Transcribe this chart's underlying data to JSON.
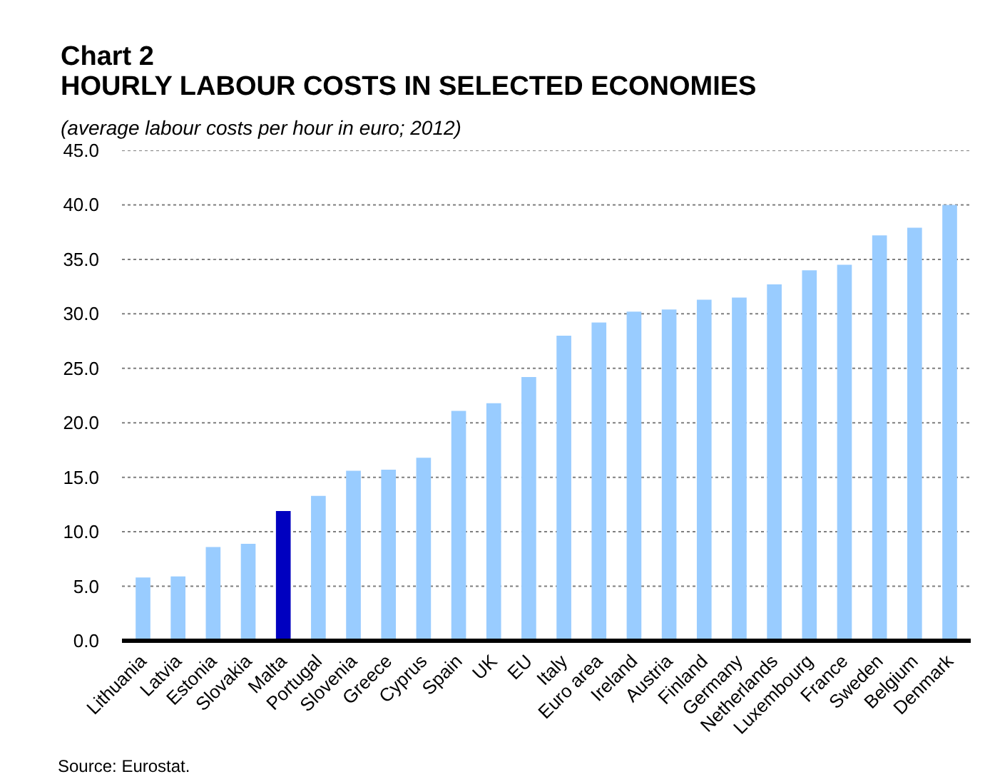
{
  "chart_data": {
    "type": "bar",
    "title": "Chart 2\nHOURLY LABOUR COSTS IN SELECTED ECONOMIES",
    "subtitle": "(average labour costs per hour in euro; 2012)",
    "categories": [
      "Lithuania",
      "Latvia",
      "Estonia",
      "Slovakia",
      "Malta",
      "Portugal",
      "Slovenia",
      "Greece",
      "Cyprus",
      "Spain",
      "UK",
      "EU",
      "Italy",
      "Euro area",
      "Ireland",
      "Austria",
      "Finland",
      "Germany",
      "Netherlands",
      "Luxembourg",
      "France",
      "Sweden",
      "Belgium",
      "Denmark"
    ],
    "values": [
      5.8,
      5.9,
      8.6,
      8.9,
      11.9,
      13.3,
      15.6,
      15.7,
      16.8,
      21.1,
      21.8,
      24.2,
      28.0,
      29.2,
      30.2,
      30.4,
      31.3,
      31.5,
      32.7,
      34.0,
      34.5,
      37.2,
      37.9,
      40.0
    ],
    "colors": [
      "#99ccff",
      "#99ccff",
      "#99ccff",
      "#99ccff",
      "#0000c0",
      "#99ccff",
      "#99ccff",
      "#99ccff",
      "#99ccff",
      "#99ccff",
      "#99ccff",
      "#99ccff",
      "#99ccff",
      "#99ccff",
      "#99ccff",
      "#99ccff",
      "#99ccff",
      "#99ccff",
      "#99ccff",
      "#99ccff",
      "#99ccff",
      "#99ccff",
      "#99ccff",
      "#99ccff"
    ],
    "ylim": [
      0,
      45
    ],
    "yticks": [
      {
        "value": 0,
        "label": "0.0"
      },
      {
        "value": 5,
        "label": "5.0"
      },
      {
        "value": 10,
        "label": "10.0"
      },
      {
        "value": 15,
        "label": "15.0"
      },
      {
        "value": 20,
        "label": "20.0"
      },
      {
        "value": 25,
        "label": "25.0"
      },
      {
        "value": 30,
        "label": "30.0"
      },
      {
        "value": 35,
        "label": "35.0"
      },
      {
        "value": 40,
        "label": "40.0"
      },
      {
        "value": 45,
        "label": "45.0"
      }
    ],
    "grid": "y",
    "annotations": [
      "Source: Eurostat."
    ]
  }
}
